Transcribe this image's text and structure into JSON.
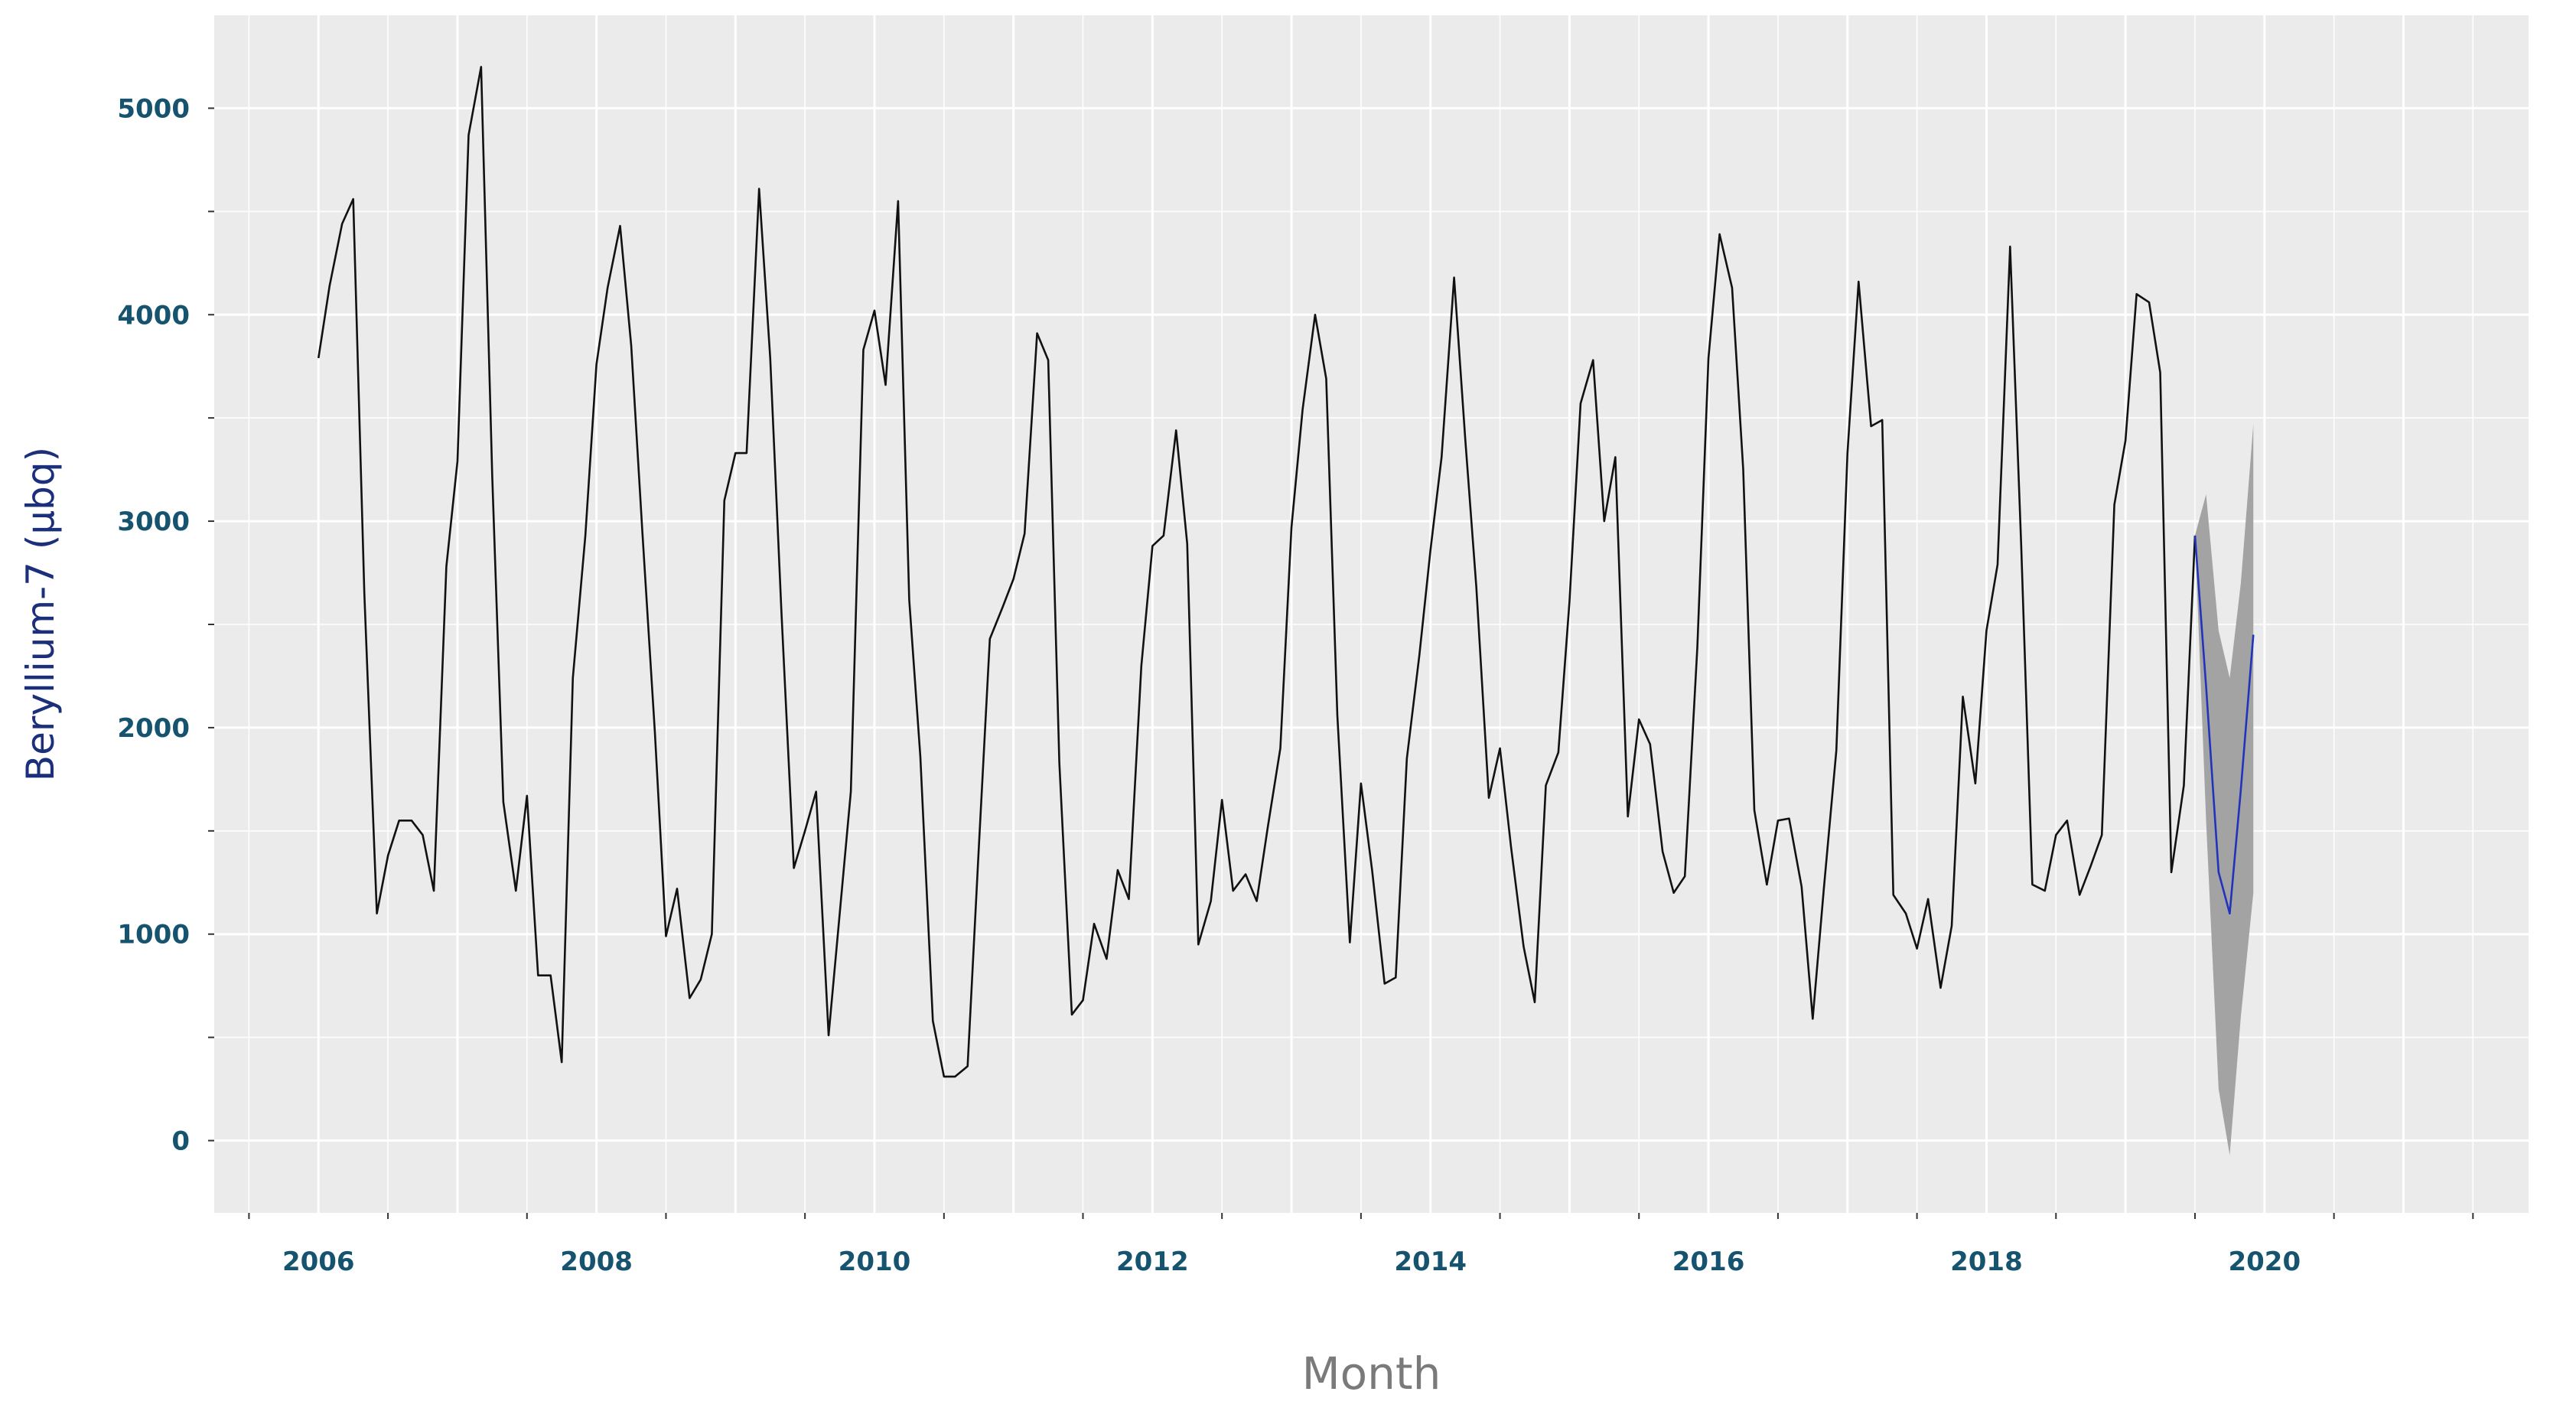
{
  "chart_data": {
    "type": "line",
    "title": "",
    "xlabel": "Month",
    "ylabel": "Beryllium-7 (µbq)",
    "x_ticks": [
      "2006",
      "2008",
      "2010",
      "2012",
      "2014",
      "2016",
      "2018",
      "2020"
    ],
    "y_ticks": [
      "0",
      "1000",
      "2000",
      "3000",
      "4000",
      "5000"
    ],
    "xlim": [
      2005.25,
      2021.9
    ],
    "ylim": [
      -350,
      5450
    ],
    "grid": true,
    "legend": "none",
    "colors": {
      "panel": "#ebebeb",
      "grid": "#ffffff",
      "observed": "#111111",
      "forecast": "#2233bb",
      "interval": "#a3a3a3",
      "tick_label": "#16536e",
      "y_title": "#1c2f7a",
      "x_title": "#7a7a7a"
    },
    "series": [
      {
        "values": [
          [
            2006.0,
            3790
          ],
          [
            2006.08,
            4140
          ],
          [
            2006.17,
            4440
          ],
          [
            2006.25,
            4560
          ],
          [
            2006.33,
            2650
          ],
          [
            2006.42,
            1100
          ],
          [
            2006.5,
            1380
          ],
          [
            2006.58,
            1550
          ],
          [
            2006.67,
            1550
          ],
          [
            2006.75,
            1480
          ],
          [
            2006.83,
            1210
          ],
          [
            2006.92,
            2780
          ],
          [
            2007.0,
            3290
          ],
          [
            2007.08,
            4870
          ],
          [
            2007.17,
            5200
          ],
          [
            2007.25,
            3220
          ],
          [
            2007.33,
            1640
          ],
          [
            2007.42,
            1210
          ],
          [
            2007.5,
            1670
          ],
          [
            2007.58,
            800
          ],
          [
            2007.67,
            800
          ],
          [
            2007.75,
            380
          ],
          [
            2007.83,
            2240
          ],
          [
            2007.92,
            2930
          ],
          [
            2008.0,
            3760
          ],
          [
            2008.08,
            4130
          ],
          [
            2008.17,
            4430
          ],
          [
            2008.25,
            3850
          ],
          [
            2008.33,
            2950
          ],
          [
            2008.42,
            1980
          ],
          [
            2008.5,
            990
          ],
          [
            2008.58,
            1220
          ],
          [
            2008.67,
            690
          ],
          [
            2008.75,
            780
          ],
          [
            2008.83,
            1000
          ],
          [
            2008.92,
            3100
          ],
          [
            2009.0,
            3330
          ],
          [
            2009.08,
            3330
          ],
          [
            2009.17,
            4610
          ],
          [
            2009.25,
            3790
          ],
          [
            2009.33,
            2570
          ],
          [
            2009.42,
            1320
          ],
          [
            2009.5,
            1500
          ],
          [
            2009.58,
            1690
          ],
          [
            2009.67,
            510
          ],
          [
            2009.75,
            1100
          ],
          [
            2009.83,
            1690
          ],
          [
            2009.92,
            3830
          ],
          [
            2010.0,
            4020
          ],
          [
            2010.08,
            3660
          ],
          [
            2010.17,
            4550
          ],
          [
            2010.25,
            2620
          ],
          [
            2010.33,
            1860
          ],
          [
            2010.42,
            580
          ],
          [
            2010.5,
            310
          ],
          [
            2010.58,
            310
          ],
          [
            2010.67,
            360
          ],
          [
            2010.75,
            1410
          ],
          [
            2010.83,
            2430
          ],
          [
            2010.92,
            2580
          ],
          [
            2011.0,
            2720
          ],
          [
            2011.08,
            2940
          ],
          [
            2011.17,
            3910
          ],
          [
            2011.25,
            3780
          ],
          [
            2011.33,
            1830
          ],
          [
            2011.42,
            610
          ],
          [
            2011.5,
            680
          ],
          [
            2011.58,
            1050
          ],
          [
            2011.67,
            880
          ],
          [
            2011.75,
            1310
          ],
          [
            2011.83,
            1170
          ],
          [
            2011.92,
            2300
          ],
          [
            2012.0,
            2880
          ],
          [
            2012.08,
            2930
          ],
          [
            2012.17,
            3440
          ],
          [
            2012.25,
            2890
          ],
          [
            2012.33,
            950
          ],
          [
            2012.42,
            1160
          ],
          [
            2012.5,
            1650
          ],
          [
            2012.58,
            1210
          ],
          [
            2012.67,
            1290
          ],
          [
            2012.75,
            1160
          ],
          [
            2012.83,
            1520
          ],
          [
            2012.92,
            1900
          ],
          [
            2013.0,
            2970
          ],
          [
            2013.08,
            3540
          ],
          [
            2013.17,
            4000
          ],
          [
            2013.25,
            3690
          ],
          [
            2013.33,
            2060
          ],
          [
            2013.42,
            960
          ],
          [
            2013.5,
            1730
          ],
          [
            2013.58,
            1310
          ],
          [
            2013.67,
            760
          ],
          [
            2013.75,
            790
          ],
          [
            2013.83,
            1850
          ],
          [
            2013.92,
            2350
          ],
          [
            2014.0,
            2860
          ],
          [
            2014.08,
            3310
          ],
          [
            2014.17,
            4180
          ],
          [
            2014.25,
            3400
          ],
          [
            2014.33,
            2680
          ],
          [
            2014.42,
            1660
          ],
          [
            2014.5,
            1900
          ],
          [
            2014.58,
            1420
          ],
          [
            2014.67,
            940
          ],
          [
            2014.75,
            670
          ],
          [
            2014.83,
            1720
          ],
          [
            2014.92,
            1880
          ],
          [
            2015.0,
            2610
          ],
          [
            2015.08,
            3570
          ],
          [
            2015.17,
            3780
          ],
          [
            2015.25,
            3000
          ],
          [
            2015.33,
            3310
          ],
          [
            2015.42,
            1570
          ],
          [
            2015.5,
            2040
          ],
          [
            2015.58,
            1920
          ],
          [
            2015.67,
            1400
          ],
          [
            2015.75,
            1200
          ],
          [
            2015.83,
            1280
          ],
          [
            2015.92,
            2390
          ],
          [
            2016.0,
            3790
          ],
          [
            2016.08,
            4390
          ],
          [
            2016.17,
            4130
          ],
          [
            2016.25,
            3250
          ],
          [
            2016.33,
            1600
          ],
          [
            2016.42,
            1240
          ],
          [
            2016.5,
            1550
          ],
          [
            2016.58,
            1560
          ],
          [
            2016.67,
            1230
          ],
          [
            2016.75,
            590
          ],
          [
            2016.83,
            1220
          ],
          [
            2016.92,
            1890
          ],
          [
            2017.0,
            3330
          ],
          [
            2017.08,
            4160
          ],
          [
            2017.17,
            3460
          ],
          [
            2017.25,
            3490
          ],
          [
            2017.33,
            1190
          ],
          [
            2017.42,
            1100
          ],
          [
            2017.5,
            930
          ],
          [
            2017.58,
            1170
          ],
          [
            2017.67,
            740
          ],
          [
            2017.75,
            1040
          ],
          [
            2017.83,
            2150
          ],
          [
            2017.92,
            1730
          ],
          [
            2018.0,
            2470
          ],
          [
            2018.08,
            2790
          ],
          [
            2018.17,
            4330
          ],
          [
            2018.25,
            2880
          ],
          [
            2018.33,
            1240
          ],
          [
            2018.42,
            1210
          ],
          [
            2018.5,
            1480
          ],
          [
            2018.58,
            1550
          ],
          [
            2018.67,
            1190
          ],
          [
            2018.75,
            1330
          ],
          [
            2018.83,
            1480
          ],
          [
            2018.92,
            3080
          ],
          [
            2019.0,
            3390
          ],
          [
            2019.08,
            4100
          ],
          [
            2019.17,
            4060
          ],
          [
            2019.25,
            3720
          ],
          [
            2019.33,
            1300
          ],
          [
            2019.42,
            1720
          ],
          [
            2019.5,
            2930
          ]
        ]
      },
      {
        "values": [
          [
            2019.5,
            2930
          ],
          [
            2019.58,
            2200
          ],
          [
            2019.67,
            1300
          ],
          [
            2019.75,
            1100
          ],
          [
            2019.83,
            1700
          ],
          [
            2019.92,
            2450
          ]
        ]
      }
    ],
    "interval": [
      [
        2019.5,
        2930,
        2930
      ],
      [
        2019.58,
        1550,
        3130
      ],
      [
        2019.67,
        250,
        2470
      ],
      [
        2019.75,
        -70,
        2240
      ],
      [
        2019.83,
        600,
        2700
      ],
      [
        2019.92,
        1200,
        3470
      ]
    ]
  }
}
